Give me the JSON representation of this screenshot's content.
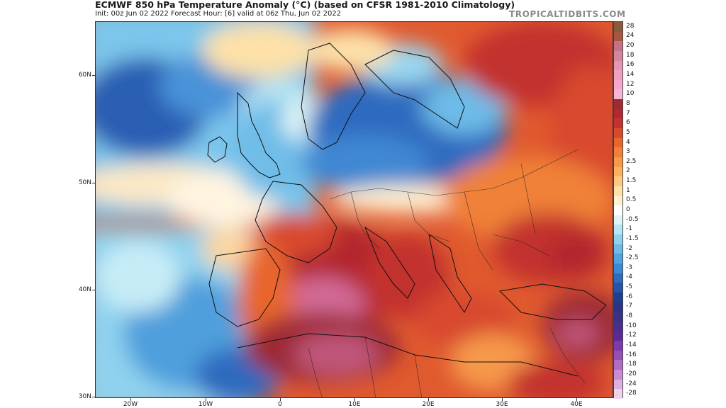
{
  "header": {
    "title": "ECMWF 850 hPa Temperature Anomaly (°C) (based on CFSR 1981-2010 Climatology)",
    "subtitle": "Init: 00z Jun 02 2022   Forecast Hour: [6]   valid at 06z Thu, Jun 02 2022",
    "brand": "TROPICALTIDBITS.COM"
  },
  "map": {
    "region": "Europe / North Atlantic",
    "lat_labels": [
      "60N",
      "50N",
      "40N",
      "30N"
    ],
    "lon_labels": [
      "20W",
      "10W",
      "0",
      "10E",
      "20E",
      "30E",
      "40E"
    ]
  },
  "colorbar": {
    "labels": [
      "28",
      "24",
      "20",
      "18",
      "16",
      "14",
      "12",
      "10",
      "8",
      "7",
      "6",
      "5",
      "4",
      "3",
      "2.5",
      "2",
      "1.5",
      "1",
      "0.5",
      "0",
      "-0.5",
      "-1",
      "-1.5",
      "-2",
      "-2.5",
      "-3",
      "-4",
      "-5",
      "-6",
      "-7",
      "-8",
      "-10",
      "-12",
      "-14",
      "-16",
      "-18",
      "-20",
      "-24",
      "-28"
    ],
    "colors": [
      "#8a5a3c",
      "#a5563f",
      "#c3728a",
      "#d4869e",
      "#e497b5",
      "#ee9fc2",
      "#f4a6cc",
      "#f3b6d3",
      "#9e2a34",
      "#b2282f",
      "#c2322e",
      "#d84a2d",
      "#e8662e",
      "#f08138",
      "#f6994b",
      "#fbb060",
      "#fdc982",
      "#fde1a8",
      "#fff1d2",
      "#ffffff",
      "#dff5f7",
      "#b6e6f2",
      "#8fd2ee",
      "#6dbbe8",
      "#53a3df",
      "#3f88d3",
      "#2f6bbf",
      "#2754a6",
      "#1f3f8c",
      "#2a3482",
      "#3a3180",
      "#4b2e88",
      "#5c2a96",
      "#7b3ba8",
      "#9650b5",
      "#b06bc2",
      "#c98cd1",
      "#ddb0e0",
      "#efd4ee"
    ]
  }
}
